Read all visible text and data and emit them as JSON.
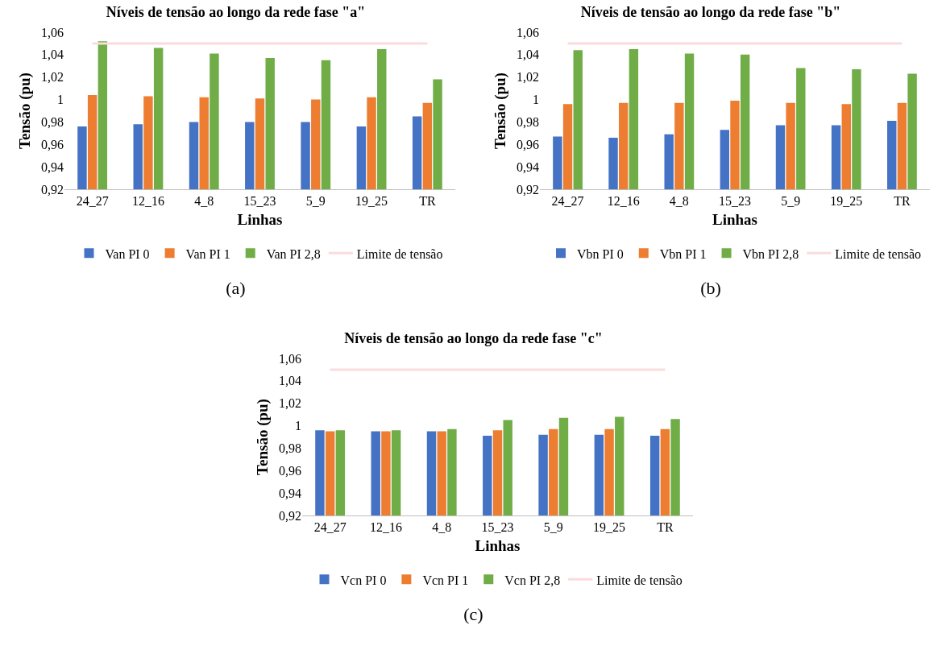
{
  "chart_data": [
    {
      "type": "bar",
      "title": "Níveis de tensão ao longo da rede fase \"a\"",
      "xlabel": "Linhas",
      "ylabel": "Tensão (pu)",
      "categories": [
        "24_27",
        "12_16",
        "4_8",
        "15_23",
        "5_9",
        "19_25",
        "TR"
      ],
      "series": [
        {
          "name": "Van PI 0",
          "color": "#4472c4",
          "values": [
            0.976,
            0.978,
            0.98,
            0.98,
            0.98,
            0.976,
            0.985
          ]
        },
        {
          "name": "Van PI 1",
          "color": "#ed7d31",
          "values": [
            1.004,
            1.003,
            1.002,
            1.001,
            1.0,
            1.002,
            0.997
          ]
        },
        {
          "name": "Van PI 2,8",
          "color": "#70ad47",
          "values": [
            1.052,
            1.046,
            1.041,
            1.037,
            1.035,
            1.045,
            1.018
          ]
        },
        {
          "name": "Limite de tensão",
          "color": "#fbdcdc",
          "type": "line",
          "values": [
            1.05,
            1.05,
            1.05,
            1.05,
            1.05,
            1.05,
            1.05
          ]
        }
      ],
      "ylim": [
        0.92,
        1.06
      ],
      "yticks": [
        {
          "value": 0.92,
          "label": "0,92"
        },
        {
          "value": 0.94,
          "label": "0,94"
        },
        {
          "value": 0.96,
          "label": "0,96"
        },
        {
          "value": 0.98,
          "label": "0,98"
        },
        {
          "value": 1,
          "label": "1"
        },
        {
          "value": 1.02,
          "label": "1,02"
        },
        {
          "value": 1.04,
          "label": "1,04"
        },
        {
          "value": 1.06,
          "label": "1,06"
        }
      ],
      "grid": false,
      "legend": "bottom",
      "annotations": [
        "(a)"
      ]
    },
    {
      "type": "bar",
      "title": "Níveis de tensão ao longo da rede fase \"b\"",
      "xlabel": "Linhas",
      "ylabel": "Tensão (pu)",
      "categories": [
        "24_27",
        "12_16",
        "4_8",
        "15_23",
        "5_9",
        "19_25",
        "TR"
      ],
      "series": [
        {
          "name": "Vbn PI 0",
          "color": "#4472c4",
          "values": [
            0.967,
            0.966,
            0.969,
            0.973,
            0.977,
            0.977,
            0.981
          ]
        },
        {
          "name": "Vbn PI 1",
          "color": "#ed7d31",
          "values": [
            0.996,
            0.997,
            0.997,
            0.999,
            0.997,
            0.996,
            0.997
          ]
        },
        {
          "name": "Vbn PI 2,8",
          "color": "#70ad47",
          "values": [
            1.044,
            1.045,
            1.041,
            1.04,
            1.028,
            1.027,
            1.023
          ]
        },
        {
          "name": "Limite de tensão",
          "color": "#fbdcdc",
          "type": "line",
          "values": [
            1.05,
            1.05,
            1.05,
            1.05,
            1.05,
            1.05,
            1.05
          ]
        }
      ],
      "ylim": [
        0.92,
        1.06
      ],
      "yticks": [
        {
          "value": 0.92,
          "label": "0,92"
        },
        {
          "value": 0.94,
          "label": "0,94"
        },
        {
          "value": 0.96,
          "label": "0,96"
        },
        {
          "value": 0.98,
          "label": "0,98"
        },
        {
          "value": 1,
          "label": "1"
        },
        {
          "value": 1.02,
          "label": "1,02"
        },
        {
          "value": 1.04,
          "label": "1,04"
        },
        {
          "value": 1.06,
          "label": "1,06"
        }
      ],
      "grid": false,
      "legend": "bottom",
      "annotations": [
        "(b)"
      ]
    },
    {
      "type": "bar",
      "title": "Níveis de tensão ao longo da rede fase \"c\"",
      "xlabel": "Linhas",
      "ylabel": "Tensão (pu)",
      "categories": [
        "24_27",
        "12_16",
        "4_8",
        "15_23",
        "5_9",
        "19_25",
        "TR"
      ],
      "series": [
        {
          "name": "Vcn PI 0",
          "color": "#4472c4",
          "values": [
            0.996,
            0.995,
            0.995,
            0.991,
            0.992,
            0.992,
            0.991
          ]
        },
        {
          "name": "Vcn PI 1",
          "color": "#ed7d31",
          "values": [
            0.995,
            0.995,
            0.995,
            0.996,
            0.997,
            0.997,
            0.997
          ]
        },
        {
          "name": "Vcn PI 2,8",
          "color": "#70ad47",
          "values": [
            0.996,
            0.996,
            0.997,
            1.005,
            1.007,
            1.008,
            1.006
          ]
        },
        {
          "name": "Limite de tensão",
          "color": "#fbdcdc",
          "type": "line",
          "values": [
            1.05,
            1.05,
            1.05,
            1.05,
            1.05,
            1.05,
            1.05
          ]
        }
      ],
      "ylim": [
        0.92,
        1.06
      ],
      "yticks": [
        {
          "value": 0.92,
          "label": "0,92"
        },
        {
          "value": 0.94,
          "label": "0,94"
        },
        {
          "value": 0.96,
          "label": "0,96"
        },
        {
          "value": 0.98,
          "label": "0,98"
        },
        {
          "value": 1,
          "label": "1"
        },
        {
          "value": 1.02,
          "label": "1,02"
        },
        {
          "value": 1.04,
          "label": "1,04"
        },
        {
          "value": 1.06,
          "label": "1,06"
        }
      ],
      "grid": false,
      "legend": "bottom",
      "annotations": [
        "(c)"
      ]
    }
  ]
}
